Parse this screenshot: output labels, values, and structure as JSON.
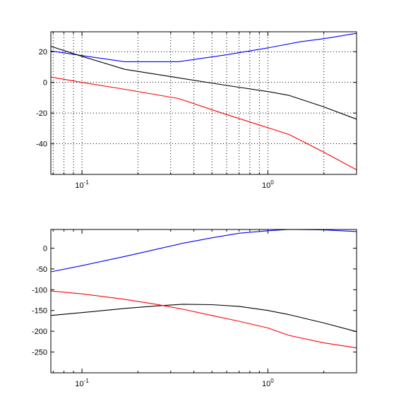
{
  "chart_data": [
    {
      "type": "line",
      "xscale": "log",
      "xlim": [
        0.068,
        3
      ],
      "ylim": [
        -60,
        33
      ],
      "grid": true,
      "xticks": [
        {
          "value": 0.1,
          "base": "10",
          "exp": "-1"
        },
        {
          "value": 1,
          "base": "10",
          "exp": "0"
        }
      ],
      "yticks": [
        20,
        0,
        -20,
        -40
      ],
      "series": [
        {
          "color": "#0000ff",
          "x": [
            0.068,
            0.1,
            0.17,
            0.33,
            0.6,
            1.0,
            1.5,
            2.0,
            3.0
          ],
          "y": [
            20.5,
            17.5,
            13.5,
            13.5,
            18,
            22.5,
            26.5,
            28.5,
            32
          ]
        },
        {
          "color": "#000000",
          "x": [
            0.068,
            0.1,
            0.17,
            0.33,
            0.6,
            1.0,
            1.3,
            2.0,
            3.0
          ],
          "y": [
            23.5,
            17,
            8.5,
            3,
            -2,
            -6,
            -8.5,
            -16,
            -24
          ]
        },
        {
          "color": "#ff0000",
          "x": [
            0.068,
            0.1,
            0.17,
            0.33,
            0.6,
            1.0,
            1.3,
            2.0,
            3.0
          ],
          "y": [
            3.5,
            0,
            -4.5,
            -10.5,
            -21,
            -29.5,
            -34,
            -45.5,
            -57
          ]
        }
      ]
    },
    {
      "type": "line",
      "xscale": "log",
      "xlim": [
        0.068,
        3
      ],
      "ylim": [
        -300,
        45
      ],
      "grid": false,
      "xticks": [
        {
          "value": 0.1,
          "base": "10",
          "exp": "-1"
        },
        {
          "value": 1,
          "base": "10",
          "exp": "0"
        }
      ],
      "yticks": [
        0,
        -50,
        -100,
        -150,
        -200,
        -250
      ],
      "series": [
        {
          "color": "#0000ff",
          "x": [
            0.068,
            0.1,
            0.17,
            0.25,
            0.35,
            0.5,
            0.7,
            1.0,
            1.3,
            2.0,
            3.0
          ],
          "y": [
            -57,
            -42,
            -20,
            -3,
            12,
            25,
            36,
            42,
            45,
            44,
            40
          ]
        },
        {
          "color": "#000000",
          "x": [
            0.068,
            0.1,
            0.17,
            0.25,
            0.35,
            0.5,
            0.7,
            1.0,
            1.3,
            2.0,
            3.0
          ],
          "y": [
            -162,
            -155,
            -145,
            -139,
            -135,
            -136,
            -140,
            -150,
            -160,
            -180,
            -201
          ]
        },
        {
          "color": "#ff0000",
          "x": [
            0.068,
            0.1,
            0.17,
            0.25,
            0.35,
            0.5,
            0.7,
            1.0,
            1.3,
            2.0,
            3.0
          ],
          "y": [
            -103,
            -110,
            -123,
            -135,
            -147,
            -162,
            -176,
            -192,
            -210,
            -228,
            -240
          ]
        }
      ]
    }
  ]
}
